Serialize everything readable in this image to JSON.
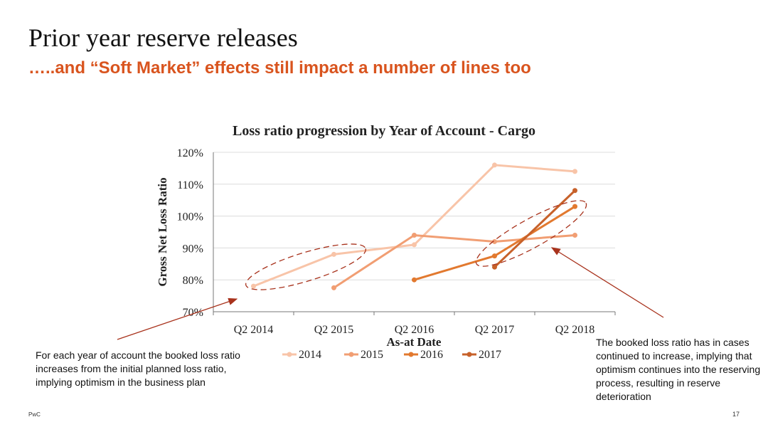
{
  "slide": {
    "title": "Prior year reserve releases",
    "subtitle": "…..and “Soft Market” effects still impact a number of lines too",
    "footer_brand": "PwC",
    "page_number": "17"
  },
  "annotations": {
    "left_note": "For each year of account the booked loss ratio increases from the initial planned loss ratio, implying optimism in the business plan",
    "right_note": "The booked loss ratio has in cases continued to increase, implying that optimism continues into the reserving process, resulting in reserve deterioration"
  },
  "colors": {
    "accent": "#d9541e",
    "arrow": "#a8321c",
    "ellipse": "#a8321c"
  },
  "chart_data": {
    "type": "line",
    "title": "Loss ratio progression by Year of Account - Cargo",
    "xlabel": "As-at Date",
    "ylabel": "Gross Net Loss Ratio",
    "categories": [
      "Q2 2014",
      "Q2 2015",
      "Q2 2016",
      "Q2 2017",
      "Q2 2018"
    ],
    "ylim": [
      70,
      120
    ],
    "yticks": [
      70,
      80,
      90,
      100,
      110,
      120
    ],
    "ytick_labels": [
      "70%",
      "80%",
      "90%",
      "100%",
      "110%",
      "120%"
    ],
    "grid": true,
    "legend_position": "bottom",
    "series": [
      {
        "name": "2014",
        "color": "#f8c4a8",
        "values": [
          78,
          88,
          91,
          116,
          114
        ]
      },
      {
        "name": "2015",
        "color": "#f19e73",
        "values": [
          null,
          77.5,
          94,
          92,
          94
        ]
      },
      {
        "name": "2016",
        "color": "#e2792f",
        "values": [
          null,
          null,
          80,
          87.5,
          103
        ]
      },
      {
        "name": "2017",
        "color": "#c7612a",
        "values": [
          null,
          null,
          null,
          84,
          108
        ]
      }
    ]
  }
}
